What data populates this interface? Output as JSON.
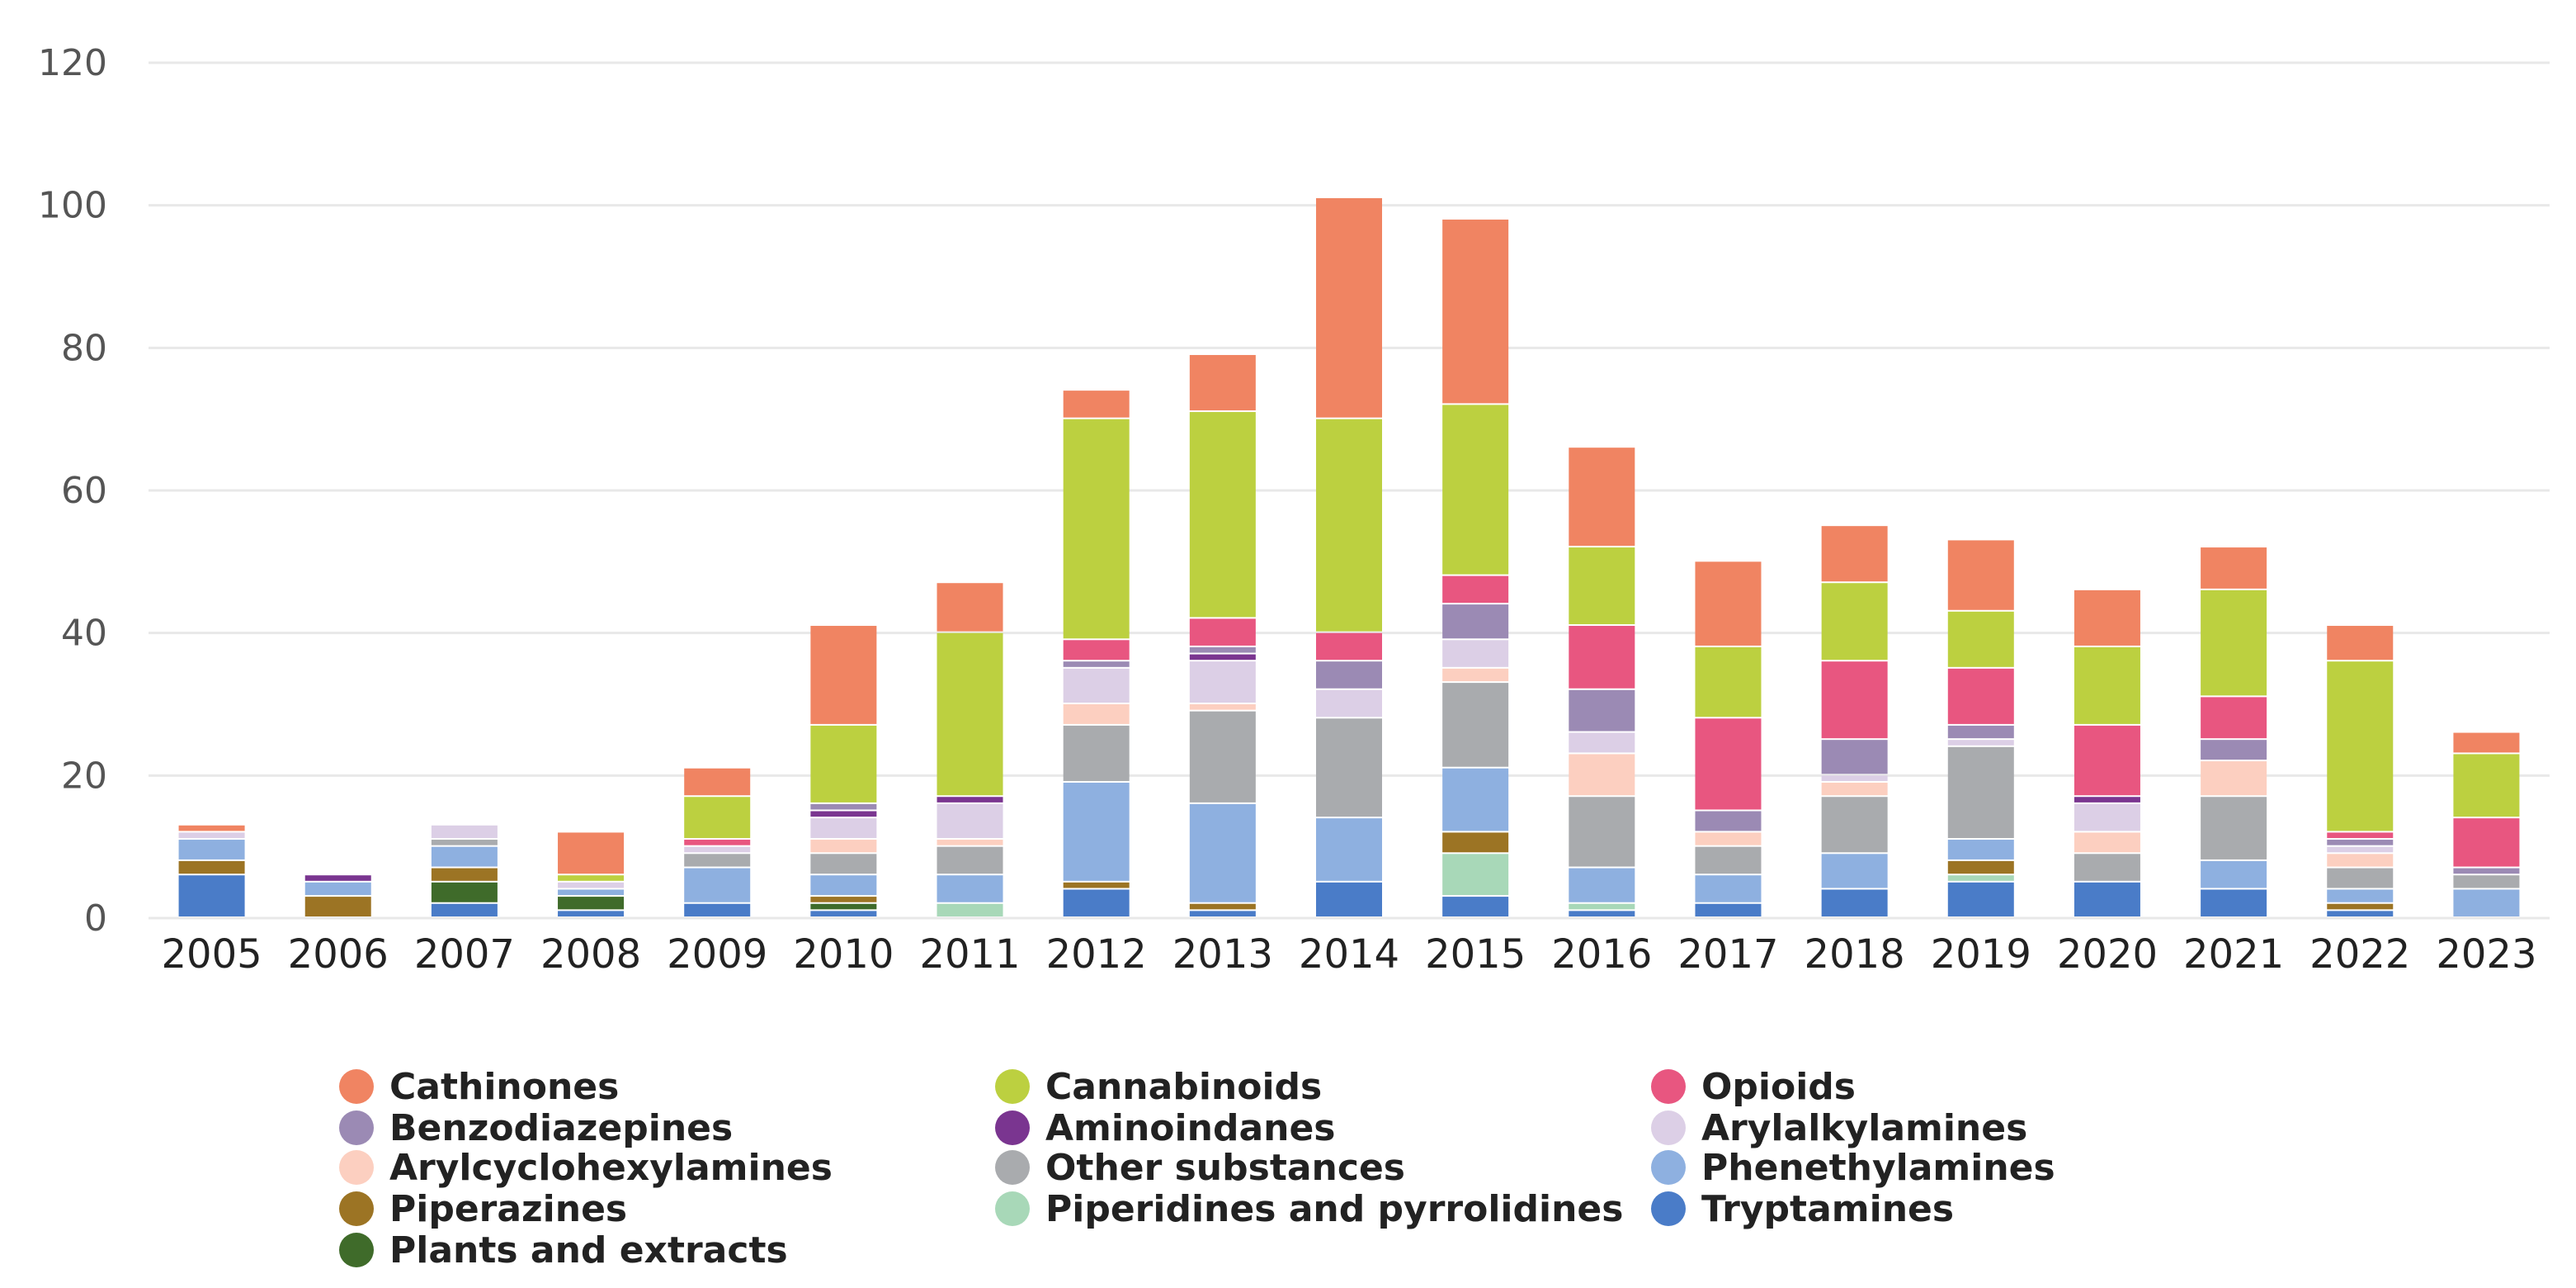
{
  "chart_data": {
    "type": "bar",
    "stacked": true,
    "title": "",
    "xlabel": "",
    "ylabel": "",
    "ylim": [
      0,
      120
    ],
    "yticks": [
      0,
      20,
      40,
      60,
      80,
      100,
      120
    ],
    "grid": true,
    "legend_position": "bottom",
    "categories": [
      "2005",
      "2006",
      "2007",
      "2008",
      "2009",
      "2010",
      "2011",
      "2012",
      "2013",
      "2014",
      "2015",
      "2016",
      "2017",
      "2018",
      "2019",
      "2020",
      "2021",
      "2022",
      "2023"
    ],
    "series": [
      {
        "name": "Tryptamines",
        "color": "#4a7cc8",
        "values": [
          6,
          0,
          2,
          1,
          2,
          1,
          0,
          4,
          1,
          5,
          3,
          1,
          2,
          4,
          5,
          5,
          4,
          1,
          0
        ]
      },
      {
        "name": "Plants and extracts",
        "color": "#3f6b2a",
        "values": [
          0,
          0,
          3,
          2,
          0,
          1,
          0,
          0,
          0,
          0,
          0,
          0,
          0,
          0,
          0,
          0,
          0,
          0,
          0
        ]
      },
      {
        "name": "Piperidines and pyrrolidines",
        "color": "#a8d8b8",
        "values": [
          0,
          0,
          0,
          0,
          0,
          0,
          2,
          0,
          0,
          0,
          6,
          1,
          0,
          0,
          1,
          0,
          0,
          0,
          0
        ]
      },
      {
        "name": "Piperazines",
        "color": "#9c7424",
        "values": [
          2,
          3,
          2,
          0,
          0,
          1,
          0,
          1,
          1,
          0,
          3,
          0,
          0,
          0,
          2,
          0,
          0,
          1,
          0
        ]
      },
      {
        "name": "Phenethylamines",
        "color": "#8eb0e0",
        "values": [
          3,
          2,
          3,
          1,
          5,
          3,
          4,
          14,
          14,
          9,
          9,
          5,
          4,
          5,
          3,
          0,
          4,
          2,
          4
        ]
      },
      {
        "name": "Other substances",
        "color": "#a9abae",
        "values": [
          0,
          0,
          1,
          0,
          2,
          3,
          4,
          8,
          13,
          14,
          12,
          10,
          4,
          8,
          13,
          4,
          9,
          3,
          2
        ]
      },
      {
        "name": "Arylcyclohexylamines",
        "color": "#fccfc0",
        "values": [
          0,
          0,
          0,
          0,
          0,
          2,
          1,
          3,
          1,
          0,
          2,
          6,
          2,
          2,
          0,
          3,
          5,
          2,
          0
        ]
      },
      {
        "name": "Arylalkylamines",
        "color": "#dccfe6",
        "values": [
          1,
          0,
          2,
          1,
          1,
          3,
          5,
          5,
          6,
          4,
          4,
          3,
          0,
          1,
          1,
          4,
          0,
          1,
          0
        ]
      },
      {
        "name": "Aminoindanes",
        "color": "#7a3590",
        "values": [
          0,
          1,
          0,
          0,
          0,
          1,
          1,
          0,
          1,
          0,
          0,
          0,
          0,
          0,
          0,
          1,
          0,
          0,
          0
        ]
      },
      {
        "name": "Benzodiazepines",
        "color": "#9b8ab4",
        "values": [
          0,
          0,
          0,
          0,
          0,
          1,
          0,
          1,
          1,
          4,
          5,
          6,
          3,
          5,
          2,
          0,
          3,
          1,
          1
        ]
      },
      {
        "name": "Opioids",
        "color": "#e85680",
        "values": [
          0,
          0,
          0,
          0,
          1,
          0,
          0,
          3,
          4,
          4,
          4,
          9,
          13,
          11,
          8,
          10,
          6,
          1,
          7
        ]
      },
      {
        "name": "Cannabinoids",
        "color": "#bcd040",
        "values": [
          0,
          0,
          0,
          1,
          6,
          11,
          23,
          31,
          29,
          30,
          24,
          11,
          10,
          11,
          8,
          11,
          15,
          24,
          9
        ]
      },
      {
        "name": "Cathinones",
        "color": "#f08462",
        "values": [
          1,
          0,
          0,
          6,
          4,
          14,
          7,
          4,
          8,
          31,
          26,
          14,
          12,
          8,
          10,
          8,
          6,
          5,
          3
        ]
      }
    ],
    "legend_order": [
      "Cathinones",
      "Cannabinoids",
      "Opioids",
      "Benzodiazepines",
      "Aminoindanes",
      "Arylalkylamines",
      "Arylcyclohexylamines",
      "Other substances",
      "Phenethylamines",
      "Piperazines",
      "Piperidines and pyrrolidines",
      "Tryptamines",
      "Plants and extracts"
    ]
  }
}
